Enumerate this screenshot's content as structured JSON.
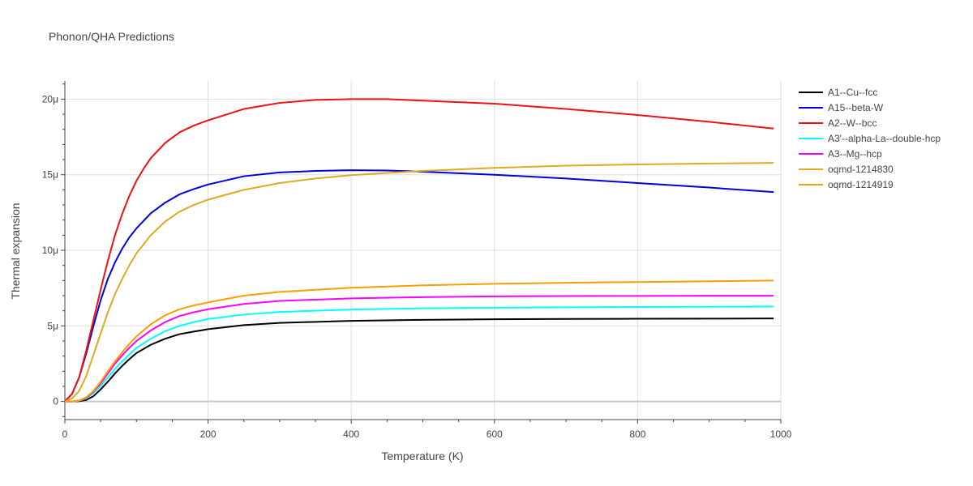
{
  "chart_data": {
    "type": "line",
    "title": "Phonon/QHA Predictions",
    "xlabel": "Temperature (K)",
    "ylabel": "Thermal expansion",
    "xlim": [
      0,
      1000
    ],
    "ylim": [
      -1.2,
      21.2
    ],
    "x_ticks": [
      0,
      200,
      400,
      600,
      800,
      1000
    ],
    "x_tick_labels": [
      "0",
      "200",
      "400",
      "600",
      "800",
      "1000"
    ],
    "y_ticks": [
      0,
      5,
      10,
      15,
      20
    ],
    "y_tick_labels": [
      "0",
      "5μ",
      "10μ",
      "15μ",
      "20μ"
    ],
    "grid": true,
    "legend_position": "top-right",
    "series": [
      {
        "name": "A1--Cu--fcc",
        "color": "#000000",
        "x": [
          0,
          10,
          20,
          30,
          40,
          50,
          60,
          70,
          80,
          90,
          100,
          120,
          140,
          160,
          180,
          200,
          250,
          300,
          400,
          500,
          600,
          700,
          800,
          900,
          990
        ],
        "y": [
          0,
          0,
          0.02,
          0.1,
          0.35,
          0.8,
          1.3,
          1.85,
          2.35,
          2.8,
          3.2,
          3.75,
          4.15,
          4.45,
          4.62,
          4.78,
          5.05,
          5.2,
          5.33,
          5.4,
          5.44,
          5.46,
          5.47,
          5.48,
          5.49
        ]
      },
      {
        "name": "A15--beta-W",
        "color": "#0000dd",
        "x": [
          0,
          10,
          20,
          30,
          40,
          50,
          60,
          70,
          80,
          90,
          100,
          120,
          140,
          160,
          180,
          200,
          250,
          300,
          350,
          400,
          450,
          500,
          600,
          700,
          800,
          900,
          990
        ],
        "y": [
          0,
          0.5,
          1.6,
          3.2,
          5.0,
          6.7,
          8.1,
          9.2,
          10.1,
          10.85,
          11.45,
          12.45,
          13.15,
          13.7,
          14.05,
          14.35,
          14.9,
          15.15,
          15.25,
          15.3,
          15.28,
          15.2,
          15.0,
          14.75,
          14.45,
          14.15,
          13.85
        ]
      },
      {
        "name": "A2--W--bcc",
        "color": "#ee1111",
        "x": [
          0,
          10,
          20,
          30,
          40,
          50,
          60,
          70,
          80,
          90,
          100,
          110,
          120,
          140,
          160,
          180,
          200,
          250,
          300,
          350,
          400,
          450,
          500,
          600,
          700,
          800,
          900,
          990
        ],
        "y": [
          0,
          0.5,
          1.6,
          3.4,
          5.4,
          7.4,
          9.3,
          11.0,
          12.4,
          13.6,
          14.6,
          15.4,
          16.1,
          17.1,
          17.8,
          18.25,
          18.6,
          19.35,
          19.75,
          19.95,
          20.0,
          20.0,
          19.9,
          19.7,
          19.35,
          18.95,
          18.5,
          18.05
        ]
      },
      {
        "name": "A3'--alpha-La--double-hcp",
        "color": "#00ffff",
        "x": [
          0,
          10,
          20,
          30,
          40,
          50,
          60,
          70,
          80,
          90,
          100,
          120,
          140,
          160,
          180,
          200,
          250,
          300,
          400,
          500,
          600,
          700,
          800,
          900,
          990
        ],
        "y": [
          0,
          0,
          0.05,
          0.2,
          0.55,
          1.05,
          1.6,
          2.15,
          2.65,
          3.1,
          3.55,
          4.15,
          4.65,
          5.0,
          5.25,
          5.45,
          5.75,
          5.92,
          6.08,
          6.16,
          6.2,
          6.23,
          6.25,
          6.27,
          6.28
        ]
      },
      {
        "name": "A3--Mg--hcp",
        "color": "#ff00ff",
        "x": [
          0,
          10,
          20,
          30,
          40,
          50,
          60,
          70,
          80,
          90,
          100,
          120,
          140,
          160,
          180,
          200,
          250,
          300,
          400,
          500,
          600,
          700,
          800,
          900,
          990
        ],
        "y": [
          0,
          0,
          0.06,
          0.25,
          0.65,
          1.2,
          1.85,
          2.5,
          3.05,
          3.55,
          4.0,
          4.7,
          5.25,
          5.65,
          5.9,
          6.1,
          6.45,
          6.65,
          6.82,
          6.9,
          6.95,
          6.97,
          6.98,
          6.99,
          6.99
        ]
      },
      {
        "name": "oqmd-1214830",
        "color": "#ddaa22",
        "x": [
          0,
          10,
          20,
          30,
          40,
          50,
          60,
          70,
          80,
          90,
          100,
          120,
          140,
          160,
          180,
          200,
          250,
          300,
          350,
          400,
          450,
          500,
          600,
          700,
          800,
          900,
          990
        ],
        "y": [
          0,
          0.2,
          0.7,
          1.7,
          3.1,
          4.5,
          5.9,
          7.1,
          8.1,
          9.0,
          9.8,
          11.0,
          11.9,
          12.55,
          13.0,
          13.35,
          14.0,
          14.45,
          14.75,
          14.97,
          15.12,
          15.25,
          15.45,
          15.6,
          15.68,
          15.74,
          15.78
        ]
      },
      {
        "name": "oqmd-1214919",
        "color": "#f5a000",
        "x": [
          0,
          10,
          20,
          30,
          40,
          50,
          60,
          70,
          80,
          90,
          100,
          120,
          140,
          160,
          180,
          200,
          250,
          300,
          400,
          500,
          600,
          700,
          800,
          900,
          990
        ],
        "y": [
          0,
          0,
          0.06,
          0.28,
          0.7,
          1.3,
          2.0,
          2.65,
          3.25,
          3.8,
          4.3,
          5.1,
          5.7,
          6.1,
          6.35,
          6.55,
          7.0,
          7.25,
          7.52,
          7.68,
          7.78,
          7.85,
          7.9,
          7.95,
          8.0
        ]
      }
    ]
  }
}
